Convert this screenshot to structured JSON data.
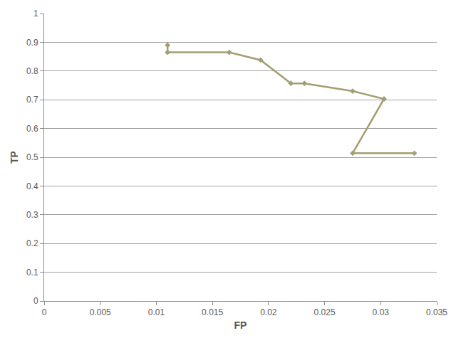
{
  "chart_data": {
    "type": "line",
    "x_label": "FP",
    "y_label": "TP",
    "x": [
      0.011,
      0.011,
      0.0165,
      0.0193,
      0.022,
      0.0232,
      0.0275,
      0.0303,
      0.0275,
      0.033
    ],
    "values": [
      0.89,
      0.865,
      0.865,
      0.838,
      0.757,
      0.757,
      0.73,
      0.703,
      0.514,
      0.514
    ],
    "color": "#a39e72",
    "marker": "diamond",
    "xlim": [
      0,
      0.035
    ],
    "xticks": [
      0,
      0.005,
      0.01,
      0.015,
      0.02,
      0.025,
      0.03,
      0.035
    ],
    "ylim": [
      0,
      1
    ],
    "yticks": [
      0,
      0.1,
      0.2,
      0.3,
      0.4,
      0.5,
      0.6,
      0.7,
      0.8,
      0.9,
      1
    ],
    "grid": "y"
  }
}
